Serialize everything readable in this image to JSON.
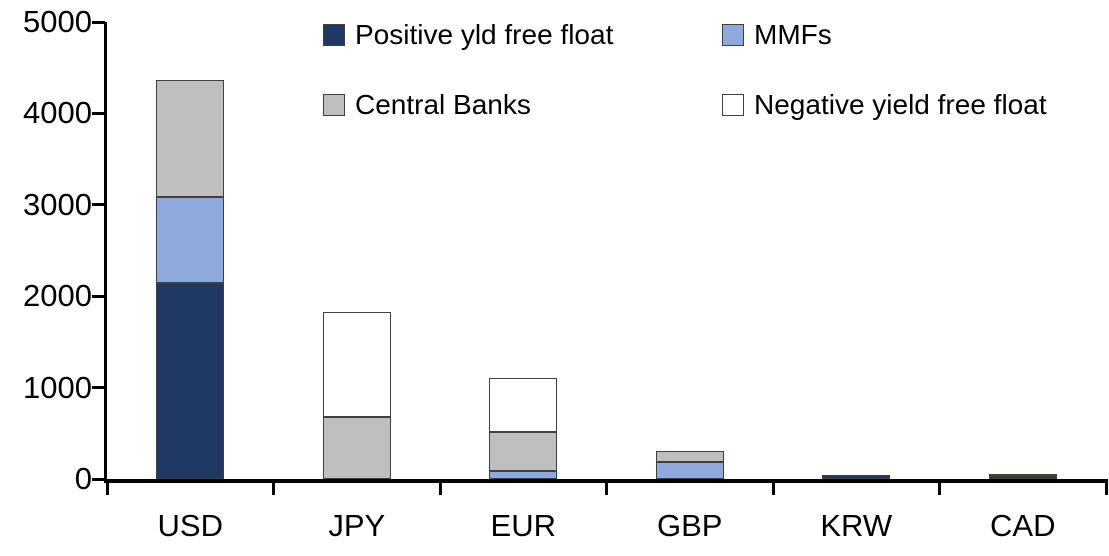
{
  "chart_data": {
    "type": "bar",
    "stacked": true,
    "title": "",
    "xlabel": "",
    "ylabel": "",
    "categories": [
      "USD",
      "JPY",
      "EUR",
      "GBP",
      "KRW",
      "CAD"
    ],
    "series": [
      {
        "name": "Positive yld free float",
        "color": "#1F3864",
        "values": [
          2140,
          0,
          0,
          0,
          40,
          30
        ]
      },
      {
        "name": "MMFs",
        "color": "#8EA9DB",
        "values": [
          940,
          0,
          90,
          190,
          0,
          0
        ]
      },
      {
        "name": "Central Banks",
        "color": "#BFBFBF",
        "values": [
          1290,
          680,
          425,
          115,
          0,
          30
        ]
      },
      {
        "name": "Negative yield free float",
        "color": "#FFFFFF",
        "values": [
          0,
          1150,
          590,
          0,
          0,
          0
        ]
      }
    ],
    "totals": {
      "USD": 4370,
      "JPY": 1830,
      "EUR": 1105,
      "GBP": 305,
      "KRW": 40,
      "CAD": 60
    },
    "ylim": [
      0,
      5000
    ],
    "yticks": [
      "0",
      "1000",
      "2000",
      "3000",
      "4000",
      "5000"
    ],
    "grid": false,
    "legend_position": "top-inside",
    "axis_color": "#000000",
    "bar_border_color": "#404040"
  }
}
